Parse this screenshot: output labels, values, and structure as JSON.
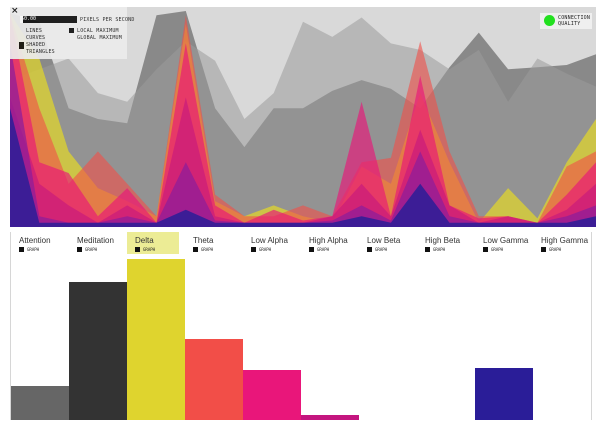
{
  "controls": {
    "slider_value": "50.00",
    "slider_fraction": 0.05,
    "pixels_per_second_label": "PIXELS PER SECOND",
    "local_max_label": "LOCAL MAXIMUM",
    "global_max_label": "GLOBAL MAXIMUM",
    "lines_label": "LINES",
    "curves_label": "CURVES",
    "shaded_label": "SHADED",
    "triangles_label": "TRIANGLES",
    "close_symbol": "×"
  },
  "connection": {
    "label_line1": "CONNECTION",
    "label_line2": "QUALITY",
    "status_color": "#22e01f"
  },
  "bands": [
    {
      "label": "Attention",
      "legend": "GRAPH",
      "color": "#666666",
      "level": 0.21,
      "selected": false
    },
    {
      "label": "Meditation",
      "legend": "GRAPH",
      "color": "#333333",
      "level": 0.86,
      "selected": false
    },
    {
      "label": "Delta",
      "legend": "GRAPH",
      "color": "#dfd42e",
      "level": 1.0,
      "selected": true
    },
    {
      "label": "Theta",
      "legend": "GRAPH",
      "color": "#f24e48",
      "level": 0.5,
      "selected": false
    },
    {
      "label": "Low Alpha",
      "legend": "GRAPH",
      "color": "#e9167a",
      "level": 0.31,
      "selected": false
    },
    {
      "label": "High Alpha",
      "legend": "GRAPH",
      "color": "#c4157f",
      "level": 0.03,
      "selected": false
    },
    {
      "label": "Low Beta",
      "legend": "GRAPH",
      "color": "#8f1d9a",
      "level": 0.0,
      "selected": false
    },
    {
      "label": "High Beta",
      "legend": "GRAPH",
      "color": "#6c1fa4",
      "level": 0.0,
      "selected": false
    },
    {
      "label": "Low Gamma",
      "legend": "GRAPH",
      "color": "#2a1d98",
      "level": 0.32,
      "selected": false
    },
    {
      "label": "High Gamma",
      "legend": "GRAPH",
      "color": "#1f1a7a",
      "level": 0.0,
      "selected": false
    }
  ],
  "graph": {
    "attention": [
      0.68,
      0.73,
      0.78,
      0.62,
      0.58,
      0.73,
      0.86,
      0.77,
      0.5,
      0.62,
      0.95,
      0.88,
      0.97,
      0.85,
      0.82,
      0.73,
      0.82,
      0.58,
      0.78,
      0.71,
      0.65
    ],
    "meditation": [
      0.99,
      0.95,
      0.55,
      0.5,
      0.48,
      0.98,
      1.0,
      0.55,
      0.37,
      0.55,
      0.55,
      0.63,
      0.68,
      0.64,
      0.55,
      0.74,
      0.9,
      0.73,
      0.74,
      0.75,
      0.8
    ],
    "delta": [
      0.99,
      0.78,
      0.35,
      0.18,
      0.12,
      0.05,
      0.94,
      0.12,
      0.05,
      0.1,
      0.05,
      0.02,
      0.28,
      0.2,
      0.62,
      0.3,
      0.02,
      0.18,
      0.04,
      0.3,
      0.5
    ],
    "theta": [
      0.99,
      0.55,
      0.2,
      0.35,
      0.2,
      0.05,
      0.98,
      0.15,
      0.05,
      0.05,
      0.1,
      0.05,
      0.3,
      0.32,
      0.86,
      0.35,
      0.05,
      0.05,
      0.02,
      0.28,
      0.35
    ],
    "low_alpha": [
      0.99,
      0.3,
      0.25,
      0.05,
      0.18,
      0.02,
      0.85,
      0.1,
      0.02,
      0.08,
      0.03,
      0.05,
      0.58,
      0.05,
      0.7,
      0.1,
      0.04,
      0.05,
      0.02,
      0.15,
      0.3
    ],
    "high_alpha": [
      0.6,
      0.2,
      0.1,
      0.02,
      0.1,
      0.02,
      0.6,
      0.05,
      0.02,
      0.02,
      0.02,
      0.05,
      0.2,
      0.05,
      0.45,
      0.1,
      0.02,
      0.05,
      0.02,
      0.08,
      0.2
    ],
    "low_beta": [
      0.85,
      0.05,
      0.02,
      0.02,
      0.05,
      0.02,
      0.3,
      0.03,
      0.02,
      0.02,
      0.02,
      0.03,
      0.1,
      0.03,
      0.35,
      0.05,
      0.02,
      0.02,
      0.02,
      0.05,
      0.1
    ],
    "low_gamma": [
      0.55,
      0.02,
      0.02,
      0.02,
      0.02,
      0.02,
      0.08,
      0.02,
      0.02,
      0.02,
      0.02,
      0.02,
      0.05,
      0.02,
      0.2,
      0.02,
      0.02,
      0.02,
      0.02,
      0.02,
      0.05
    ]
  }
}
